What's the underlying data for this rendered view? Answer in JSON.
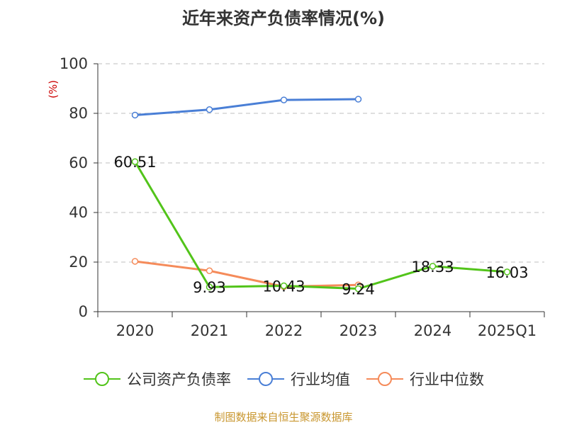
{
  "chart_data": {
    "type": "line",
    "title": "近年来资产负债率情况(%)",
    "ylabel": "(%)",
    "categories": [
      "2020",
      "2021",
      "2022",
      "2023",
      "2024",
      "2025Q1"
    ],
    "ylim": [
      0,
      100
    ],
    "yticks": [
      0,
      20,
      40,
      60,
      80,
      100
    ],
    "grid": true,
    "legend_position": "bottom",
    "series": [
      {
        "name": "公司资产负债率",
        "color": "#52c41a",
        "values": [
          60.51,
          9.93,
          10.43,
          9.24,
          18.33,
          16.03
        ],
        "labels": [
          "60.51",
          "9.93",
          "10.43",
          "9.24",
          "18.33",
          "16.03"
        ]
      },
      {
        "name": "行业均值",
        "color": "#4a7fd6",
        "values": [
          79.3,
          81.5,
          85.4,
          85.7,
          null,
          null
        ]
      },
      {
        "name": "行业中位数",
        "color": "#f58b5a",
        "values": [
          20.3,
          16.5,
          10.1,
          10.8,
          null,
          null
        ]
      }
    ]
  },
  "footer": "制图数据来自恒生聚源数据库"
}
